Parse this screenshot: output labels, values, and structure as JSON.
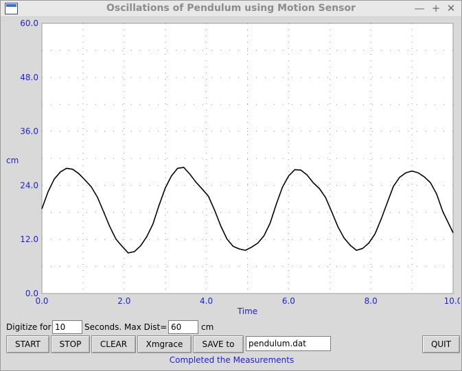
{
  "window": {
    "title": "Oscillations of Pendulum using Motion Sensor",
    "controls": {
      "minimize": "—",
      "maximize": "+",
      "close": "✕"
    }
  },
  "colors": {
    "axis_text": "#1f1fcc",
    "trace": "#000000",
    "grid": "#8c8c8c",
    "status": "#1f1fcc"
  },
  "chart_data": {
    "type": "line",
    "xlabel": "Time",
    "ylabel": "cm",
    "xlim": [
      0,
      10
    ],
    "ylim": [
      0,
      60
    ],
    "x_ticks": [
      "0.0",
      "2.0",
      "4.0",
      "6.0",
      "8.0",
      "10.0"
    ],
    "y_ticks": [
      "0.0",
      "12.0",
      "24.0",
      "36.0",
      "48.0",
      "60.0"
    ],
    "grid": true,
    "series": [
      {
        "x": [
          0.0,
          0.15,
          0.3,
          0.45,
          0.6,
          0.75,
          0.9,
          1.05,
          1.2,
          1.35,
          1.5,
          1.65,
          1.8,
          1.95,
          2.1,
          2.25,
          2.4,
          2.55,
          2.7,
          2.85,
          3.0,
          3.15,
          3.3,
          3.45,
          3.6,
          3.75,
          3.9,
          4.05,
          4.2,
          4.35,
          4.5,
          4.65,
          4.8,
          4.95,
          5.1,
          5.25,
          5.4,
          5.55,
          5.7,
          5.85,
          6.0,
          6.15,
          6.3,
          6.45,
          6.6,
          6.75,
          6.9,
          7.05,
          7.2,
          7.35,
          7.5,
          7.65,
          7.8,
          7.95,
          8.1,
          8.25,
          8.4,
          8.55,
          8.7,
          8.85,
          9.0,
          9.15,
          9.3,
          9.45,
          9.6,
          9.75,
          9.9,
          10.0
        ],
        "y": [
          18.8,
          22.6,
          25.4,
          27.0,
          27.8,
          27.6,
          26.6,
          25.2,
          23.7,
          21.4,
          18.2,
          14.9,
          12.1,
          10.5,
          9.0,
          9.3,
          10.6,
          12.6,
          15.4,
          19.6,
          23.4,
          26.1,
          27.8,
          28.0,
          26.5,
          24.7,
          23.2,
          21.6,
          18.5,
          15.0,
          12.1,
          10.5,
          9.9,
          9.6,
          10.3,
          11.2,
          12.8,
          15.6,
          19.8,
          23.6,
          26.1,
          27.5,
          27.4,
          26.3,
          24.6,
          23.3,
          21.3,
          18.1,
          14.8,
          12.3,
          10.7,
          9.6,
          10.0,
          11.2,
          13.2,
          16.5,
          20.2,
          23.8,
          25.8,
          26.8,
          27.2,
          26.8,
          25.9,
          24.6,
          22.1,
          18.2,
          15.4,
          13.5
        ]
      }
    ]
  },
  "controls_row": {
    "digitize_label": "Digitize for",
    "digitize_value": "10",
    "seconds_label": "Seconds. Max Dist=",
    "maxdist_value": "60",
    "unit_label": "cm"
  },
  "buttons": {
    "start": "START",
    "stop": "STOP",
    "clear": "CLEAR",
    "xmgrace": "Xmgrace",
    "save": "SAVE to",
    "quit": "QUIT"
  },
  "filename_value": "pendulum.dat",
  "status_text": "Completed the Measurements"
}
